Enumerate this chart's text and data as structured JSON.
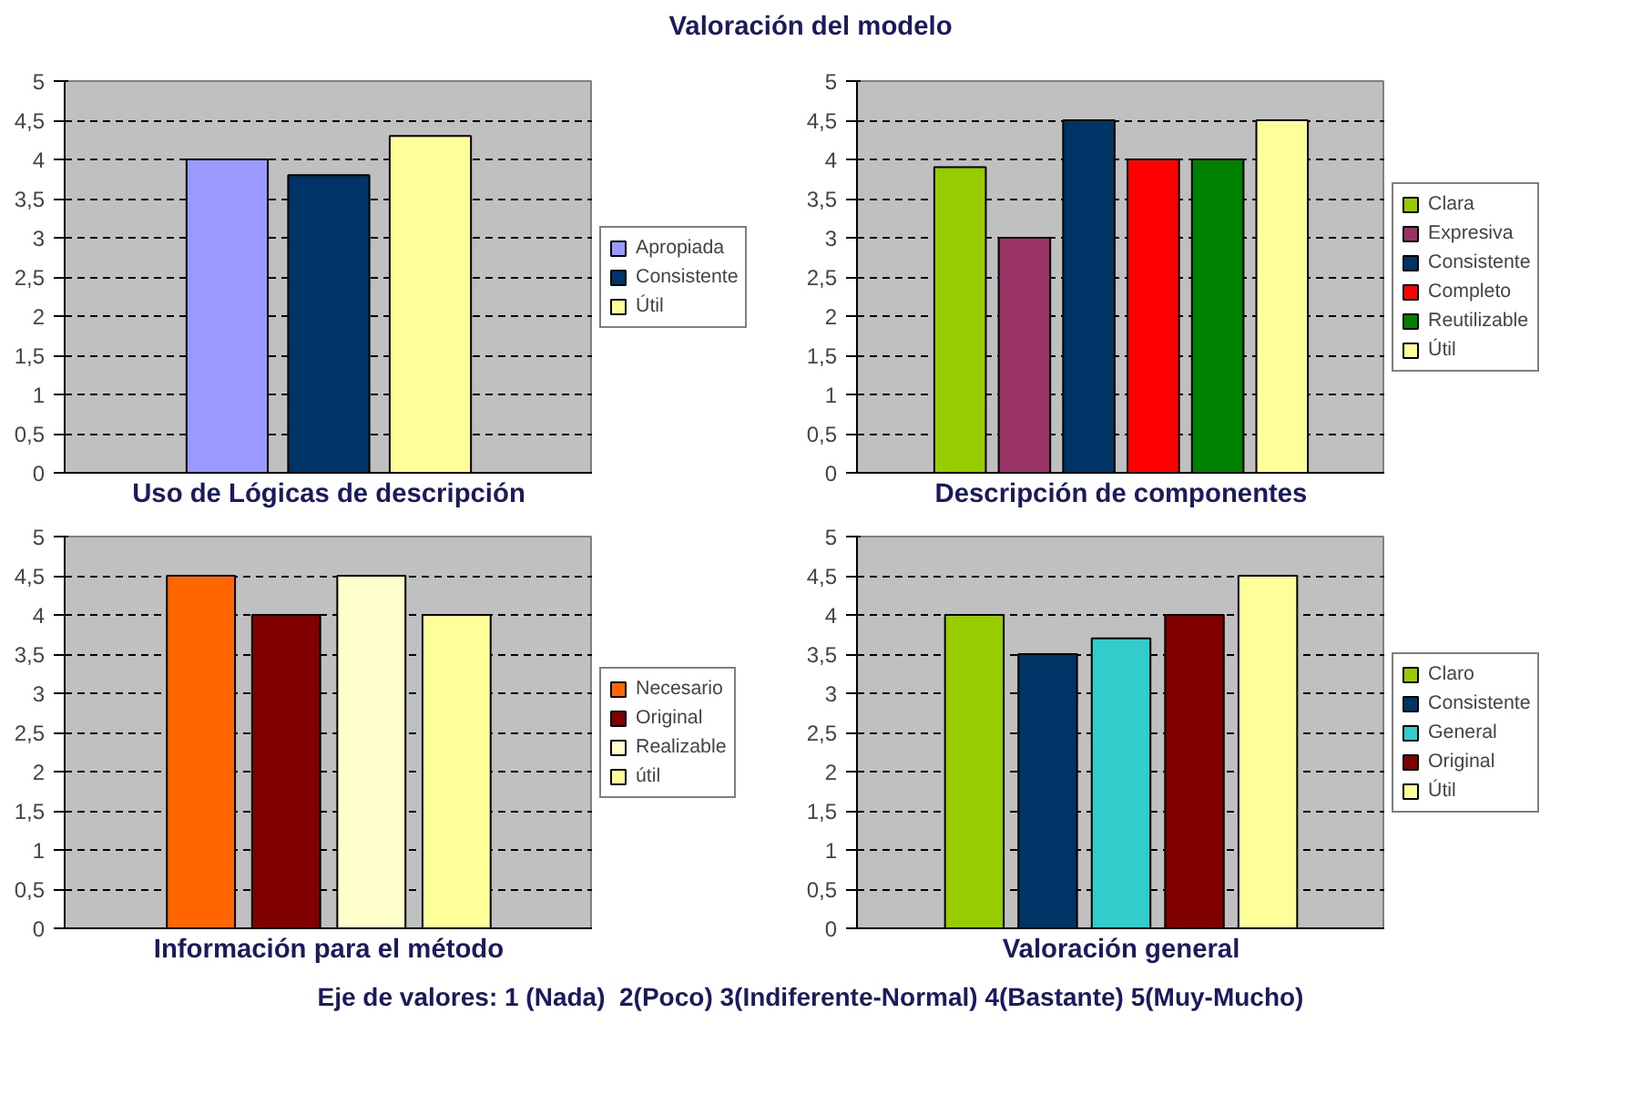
{
  "chart_data": [
    {
      "type": "bar",
      "annotations": [
        "Valoración del modelo"
      ],
      "xlabel": "Uso de Lógicas de descripción",
      "categories": [
        null
      ],
      "ylim": [
        0,
        5
      ],
      "yticks": [
        0,
        {
          "value": 0.5,
          "label": "0,5"
        },
        1,
        {
          "value": 1.5,
          "label": "1,5"
        },
        2,
        {
          "value": 2.5,
          "label": "2,5"
        },
        3,
        {
          "value": 3.5,
          "label": "3,5"
        },
        4,
        {
          "value": 4.5,
          "label": "4,5"
        },
        5
      ],
      "grid": "y",
      "legend": "right",
      "tick_labels": "y",
      "series": [
        {
          "name": "Apropiada",
          "color": "#9999ff",
          "values": [
            4
          ]
        },
        {
          "name": "Consistente",
          "color": "#003366",
          "values": [
            3.8
          ]
        },
        {
          "name": "Útil",
          "color": "#ffff99",
          "values": [
            4.3
          ]
        }
      ]
    },
    {
      "type": "bar",
      "xlabel": "Descripción de componentes",
      "categories": [
        null
      ],
      "ylim": [
        0,
        5
      ],
      "yticks": [
        0,
        {
          "value": 0.5,
          "label": "0,5"
        },
        1,
        {
          "value": 1.5,
          "label": "1,5"
        },
        2,
        {
          "value": 2.5,
          "label": "2,5"
        },
        3,
        {
          "value": 3.5,
          "label": "3,5"
        },
        4,
        {
          "value": 4.5,
          "label": "4,5"
        },
        5
      ],
      "grid": "y",
      "legend": "right",
      "tick_labels": "y",
      "series": [
        {
          "name": "Clara",
          "color": "#99cc00",
          "values": [
            3.9
          ]
        },
        {
          "name": "Expresiva",
          "color": "#993366",
          "values": [
            3
          ]
        },
        {
          "name": "Consistente",
          "color": "#003366",
          "values": [
            4.5
          ]
        },
        {
          "name": "Completo",
          "color": "#ff0000",
          "values": [
            4
          ]
        },
        {
          "name": "Reutilizable",
          "color": "#008000",
          "values": [
            4
          ]
        },
        {
          "name": "Útil",
          "color": "#ffff99",
          "values": [
            4.5
          ]
        }
      ]
    },
    {
      "type": "bar",
      "xlabel": "Información para el método",
      "categories": [
        null
      ],
      "ylim": [
        0,
        5
      ],
      "yticks": [
        0,
        {
          "value": 0.5,
          "label": "0,5"
        },
        1,
        {
          "value": 1.5,
          "label": "1,5"
        },
        2,
        {
          "value": 2.5,
          "label": "2,5"
        },
        3,
        {
          "value": 3.5,
          "label": "3,5"
        },
        4,
        {
          "value": 4.5,
          "label": "4,5"
        },
        5
      ],
      "grid": "y",
      "legend": "right",
      "tick_labels": "y",
      "series": [
        {
          "name": "Necesario",
          "color": "#ff6600",
          "values": [
            4.5
          ]
        },
        {
          "name": "Original",
          "color": "#800000",
          "values": [
            4
          ]
        },
        {
          "name": "Realizable",
          "color": "#ffffcc",
          "values": [
            4.5
          ]
        },
        {
          "name": "útil",
          "color": "#ffff99",
          "values": [
            4
          ]
        }
      ]
    },
    {
      "type": "bar",
      "xlabel": "Valoración general",
      "categories": [
        null
      ],
      "ylim": [
        0,
        5
      ],
      "yticks": [
        0,
        {
          "value": 0.5,
          "label": "0,5"
        },
        1,
        {
          "value": 1.5,
          "label": "1,5"
        },
        2,
        {
          "value": 2.5,
          "label": "2,5"
        },
        3,
        {
          "value": 3.5,
          "label": "3,5"
        },
        4,
        {
          "value": 4.5,
          "label": "4,5"
        },
        5
      ],
      "grid": "y",
      "legend": "right",
      "tick_labels": "y",
      "annotations": [
        "Eje de valores: 1 (Nada)  2(Poco) 3(Indiferente-Normal) 4(Bastante) 5(Muy-Mucho)"
      ],
      "series": [
        {
          "name": "Claro",
          "color": "#99cc00",
          "values": [
            4
          ]
        },
        {
          "name": "Consistente",
          "color": "#003366",
          "values": [
            3.5
          ]
        },
        {
          "name": "General",
          "color": "#33cccc",
          "values": [
            3.7
          ]
        },
        {
          "name": "Original",
          "color": "#800000",
          "values": [
            4
          ]
        },
        {
          "name": "Útil",
          "color": "#ffff99",
          "values": [
            4.5
          ]
        }
      ]
    }
  ]
}
